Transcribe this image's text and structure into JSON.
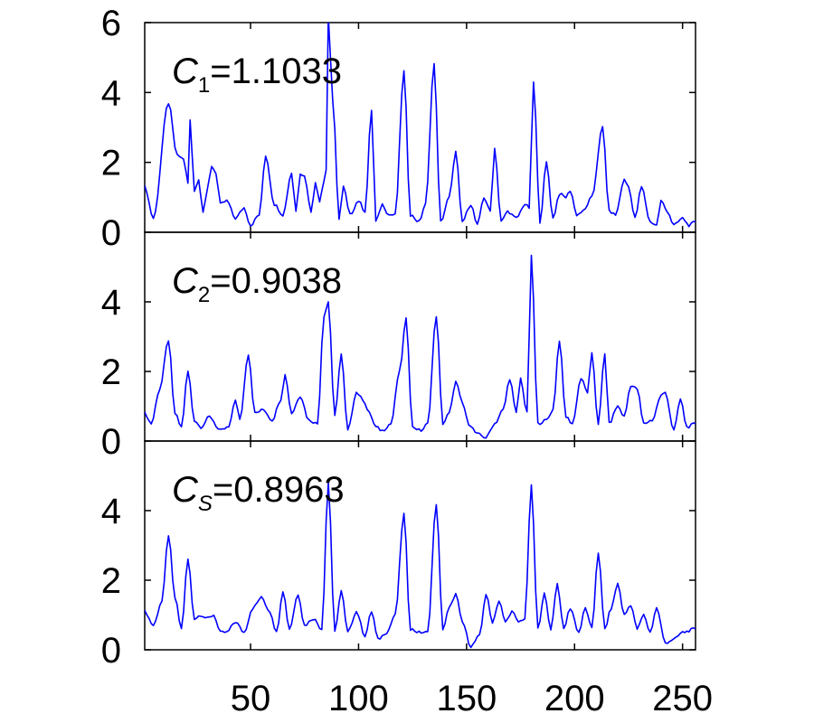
{
  "chart_data": {
    "type": "line",
    "line_color": "#0000ff",
    "grid": false,
    "x_ticks": [
      50,
      100,
      150,
      200,
      250
    ],
    "x_tick_labels": [
      "50",
      "100",
      "150",
      "200",
      "250"
    ],
    "xlim": [
      1,
      256
    ],
    "panels": [
      {
        "label": {
          "letter": "C",
          "subscript": "1",
          "value": "=1.1033"
        },
        "ylim": [
          0,
          6
        ],
        "y_ticks": [
          0,
          2,
          4,
          6
        ],
        "y_tick_labels": [
          "0",
          "2",
          "4",
          "6"
        ],
        "peaks": [
          [
            1,
            1.3
          ],
          [
            5,
            0.4
          ],
          [
            12,
            3.7
          ],
          [
            16,
            2.2
          ],
          [
            19,
            2.1
          ],
          [
            21,
            1.4
          ],
          [
            22,
            3.2
          ],
          [
            24,
            1.2
          ],
          [
            26,
            1.5
          ],
          [
            28,
            0.6
          ],
          [
            30,
            1.2
          ],
          [
            32,
            1.9
          ],
          [
            34,
            1.7
          ],
          [
            36,
            0.8
          ],
          [
            39,
            0.9
          ],
          [
            43,
            0.4
          ],
          [
            47,
            0.7
          ],
          [
            50,
            0.2
          ],
          [
            54,
            0.5
          ],
          [
            57,
            2.2
          ],
          [
            61,
            0.8
          ],
          [
            65,
            0.5
          ],
          [
            69,
            1.7
          ],
          [
            71,
            0.6
          ],
          [
            73,
            1.7
          ],
          [
            75,
            1.6
          ],
          [
            78,
            0.6
          ],
          [
            80,
            1.4
          ],
          [
            82,
            0.9
          ],
          [
            83,
            1.2
          ],
          [
            85,
            1.8
          ],
          [
            86,
            6.2
          ],
          [
            88,
            3.8
          ],
          [
            91,
            0.4
          ],
          [
            93,
            1.3
          ],
          [
            96,
            0.5
          ],
          [
            100,
            0.9
          ],
          [
            103,
            0.6
          ],
          [
            106,
            3.5
          ],
          [
            108,
            0.3
          ],
          [
            111,
            0.8
          ],
          [
            114,
            0.5
          ],
          [
            117,
            0.5
          ],
          [
            121,
            4.6
          ],
          [
            124,
            0.5
          ],
          [
            128,
            0.3
          ],
          [
            131,
            0.8
          ],
          [
            135,
            4.8
          ],
          [
            138,
            0.3
          ],
          [
            142,
            1.0
          ],
          [
            145,
            2.3
          ],
          [
            148,
            0.3
          ],
          [
            152,
            0.8
          ],
          [
            155,
            0.2
          ],
          [
            158,
            1.0
          ],
          [
            161,
            0.6
          ],
          [
            163,
            2.4
          ],
          [
            166,
            0.3
          ],
          [
            169,
            0.6
          ],
          [
            173,
            0.4
          ],
          [
            177,
            0.8
          ],
          [
            179,
            0.7
          ],
          [
            181,
            4.3
          ],
          [
            184,
            0.3
          ],
          [
            187,
            2.0
          ],
          [
            190,
            0.4
          ],
          [
            193,
            1.1
          ],
          [
            196,
            1.0
          ],
          [
            198,
            1.2
          ],
          [
            201,
            0.5
          ],
          [
            204,
            0.6
          ],
          [
            208,
            1.0
          ],
          [
            213,
            3.0
          ],
          [
            216,
            0.6
          ],
          [
            219,
            0.5
          ],
          [
            223,
            1.5
          ],
          [
            225,
            1.3
          ],
          [
            228,
            0.4
          ],
          [
            231,
            1.3
          ],
          [
            235,
            0.3
          ],
          [
            238,
            0.2
          ],
          [
            240,
            0.9
          ],
          [
            243,
            0.6
          ],
          [
            246,
            0.2
          ],
          [
            250,
            0.4
          ],
          [
            253,
            0.2
          ],
          [
            256,
            0.3
          ]
        ]
      },
      {
        "label": {
          "letter": "C",
          "subscript": "2",
          "value": "=0.9038"
        },
        "ylim": [
          0,
          6
        ],
        "y_ticks": [
          0,
          2,
          4
        ],
        "y_tick_labels": [
          "0",
          "2",
          "4"
        ],
        "peaks": [
          [
            1,
            0.8
          ],
          [
            4,
            0.5
          ],
          [
            8,
            1.5
          ],
          [
            12,
            2.9
          ],
          [
            15,
            0.8
          ],
          [
            18,
            0.4
          ],
          [
            21,
            2.0
          ],
          [
            24,
            0.6
          ],
          [
            27,
            0.4
          ],
          [
            31,
            0.7
          ],
          [
            36,
            0.3
          ],
          [
            40,
            0.4
          ],
          [
            43,
            1.2
          ],
          [
            45,
            0.6
          ],
          [
            49,
            2.5
          ],
          [
            52,
            0.8
          ],
          [
            56,
            0.9
          ],
          [
            60,
            0.6
          ],
          [
            64,
            1.2
          ],
          [
            66,
            1.9
          ],
          [
            69,
            0.8
          ],
          [
            73,
            1.3
          ],
          [
            77,
            0.6
          ],
          [
            81,
            0.5
          ],
          [
            84,
            3.6
          ],
          [
            86,
            4.0
          ],
          [
            89,
            0.7
          ],
          [
            92,
            2.5
          ],
          [
            95,
            0.3
          ],
          [
            99,
            1.4
          ],
          [
            102,
            1.2
          ],
          [
            105,
            0.8
          ],
          [
            108,
            0.4
          ],
          [
            111,
            0.3
          ],
          [
            115,
            0.5
          ],
          [
            119,
            2.0
          ],
          [
            122,
            3.5
          ],
          [
            125,
            0.4
          ],
          [
            129,
            0.3
          ],
          [
            132,
            0.5
          ],
          [
            136,
            3.6
          ],
          [
            139,
            0.5
          ],
          [
            142,
            0.8
          ],
          [
            145,
            1.7
          ],
          [
            148,
            1.1
          ],
          [
            151,
            0.5
          ],
          [
            155,
            0.2
          ],
          [
            159,
            0.1
          ],
          [
            163,
            0.5
          ],
          [
            167,
            0.9
          ],
          [
            170,
            1.8
          ],
          [
            173,
            0.8
          ],
          [
            175,
            1.8
          ],
          [
            178,
            0.8
          ],
          [
            180,
            5.3
          ],
          [
            183,
            0.5
          ],
          [
            187,
            0.6
          ],
          [
            190,
            0.9
          ],
          [
            193,
            2.9
          ],
          [
            196,
            0.7
          ],
          [
            199,
            0.5
          ],
          [
            203,
            1.8
          ],
          [
            206,
            1.4
          ],
          [
            208,
            2.5
          ],
          [
            211,
            0.5
          ],
          [
            214,
            2.5
          ],
          [
            216,
            0.5
          ],
          [
            220,
            1.0
          ],
          [
            223,
            0.7
          ],
          [
            226,
            1.6
          ],
          [
            229,
            1.5
          ],
          [
            232,
            0.5
          ],
          [
            236,
            0.6
          ],
          [
            240,
            1.3
          ],
          [
            242,
            1.4
          ],
          [
            246,
            0.3
          ],
          [
            249,
            1.2
          ],
          [
            252,
            0.4
          ],
          [
            256,
            0.5
          ]
        ]
      },
      {
        "label": {
          "letter": "C",
          "subscript": "S",
          "value": "=0.8963"
        },
        "ylim": [
          0,
          6
        ],
        "y_ticks": [
          0,
          2,
          4
        ],
        "y_tick_labels": [
          "0",
          "2",
          "4"
        ],
        "peaks": [
          [
            1,
            1.1
          ],
          [
            5,
            0.7
          ],
          [
            9,
            1.4
          ],
          [
            12,
            3.3
          ],
          [
            15,
            1.5
          ],
          [
            18,
            0.6
          ],
          [
            21,
            2.6
          ],
          [
            24,
            0.9
          ],
          [
            27,
            1.0
          ],
          [
            30,
            0.9
          ],
          [
            33,
            1.0
          ],
          [
            36,
            0.5
          ],
          [
            39,
            0.5
          ],
          [
            43,
            0.8
          ],
          [
            47,
            0.5
          ],
          [
            51,
            1.2
          ],
          [
            55,
            1.5
          ],
          [
            59,
            1.1
          ],
          [
            62,
            0.5
          ],
          [
            65,
            1.7
          ],
          [
            68,
            0.6
          ],
          [
            72,
            1.6
          ],
          [
            75,
            0.7
          ],
          [
            79,
            0.9
          ],
          [
            83,
            0.6
          ],
          [
            86,
            4.8
          ],
          [
            89,
            0.5
          ],
          [
            92,
            1.7
          ],
          [
            95,
            0.5
          ],
          [
            99,
            1.1
          ],
          [
            103,
            0.4
          ],
          [
            106,
            1.1
          ],
          [
            109,
            0.3
          ],
          [
            113,
            0.5
          ],
          [
            117,
            1.0
          ],
          [
            121,
            3.9
          ],
          [
            124,
            0.6
          ],
          [
            128,
            0.5
          ],
          [
            132,
            0.5
          ],
          [
            136,
            4.2
          ],
          [
            139,
            0.6
          ],
          [
            142,
            1.2
          ],
          [
            145,
            1.6
          ],
          [
            148,
            0.8
          ],
          [
            152,
            0.1
          ],
          [
            156,
            0.4
          ],
          [
            159,
            1.6
          ],
          [
            162,
            0.8
          ],
          [
            165,
            1.4
          ],
          [
            168,
            0.8
          ],
          [
            171,
            1.1
          ],
          [
            174,
            0.8
          ],
          [
            177,
            0.9
          ],
          [
            180,
            4.7
          ],
          [
            183,
            0.6
          ],
          [
            186,
            1.6
          ],
          [
            189,
            0.6
          ],
          [
            192,
            1.9
          ],
          [
            195,
            0.6
          ],
          [
            198,
            1.2
          ],
          [
            202,
            0.5
          ],
          [
            205,
            1.2
          ],
          [
            208,
            0.6
          ],
          [
            211,
            2.8
          ],
          [
            214,
            0.6
          ],
          [
            217,
            1.2
          ],
          [
            220,
            1.9
          ],
          [
            223,
            1.0
          ],
          [
            226,
            1.3
          ],
          [
            229,
            0.6
          ],
          [
            232,
            1.0
          ],
          [
            235,
            0.5
          ],
          [
            238,
            1.2
          ],
          [
            242,
            0.2
          ],
          [
            246,
            0.3
          ],
          [
            250,
            0.5
          ],
          [
            256,
            0.6
          ]
        ]
      }
    ]
  }
}
